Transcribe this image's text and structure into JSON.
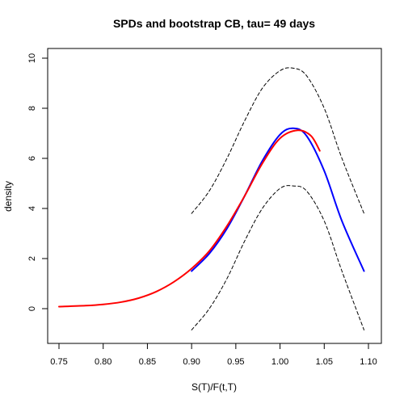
{
  "chart_data": {
    "type": "line",
    "title": "SPDs and bootstrap CB, tau= 49 days",
    "xlabel": "S(T)/F(t,T)",
    "ylabel": "density",
    "xlim": [
      0.75,
      1.1
    ],
    "ylim": [
      0,
      10
    ],
    "x_ticks": [
      "0.75",
      "0.80",
      "0.85",
      "0.90",
      "0.95",
      "1.00",
      "1.05",
      "1.10"
    ],
    "y_ticks": [
      "0",
      "2",
      "4",
      "6",
      "8",
      "10"
    ],
    "grid": false,
    "legend": "none",
    "series": [
      {
        "style": "dashed",
        "color": "#000000",
        "x": [
          0.9,
          0.92,
          0.94,
          0.96,
          0.98,
          1.0,
          1.015,
          1.03,
          1.05,
          1.07,
          1.095
        ],
        "y": [
          3.8,
          4.7,
          6.0,
          7.5,
          8.8,
          9.5,
          9.6,
          9.3,
          8.0,
          6.0,
          3.8
        ]
      },
      {
        "style": "dashed",
        "color": "#000000",
        "x": [
          0.9,
          0.92,
          0.94,
          0.96,
          0.98,
          1.0,
          1.015,
          1.03,
          1.05,
          1.07,
          1.095
        ],
        "y": [
          -0.85,
          0.0,
          1.2,
          2.7,
          4.0,
          4.8,
          4.9,
          4.7,
          3.5,
          1.5,
          -0.85
        ]
      },
      {
        "style": "solid",
        "color": "#0000ff",
        "x": [
          0.9,
          0.92,
          0.94,
          0.96,
          0.98,
          1.0,
          1.015,
          1.03,
          1.05,
          1.07,
          1.095
        ],
        "y": [
          1.5,
          2.2,
          3.2,
          4.5,
          5.9,
          6.95,
          7.2,
          6.9,
          5.5,
          3.5,
          1.5
        ]
      },
      {
        "style": "solid",
        "color": "#ff0000",
        "x": [
          0.75,
          0.78,
          0.8,
          0.82,
          0.84,
          0.86,
          0.88,
          0.9,
          0.92,
          0.94,
          0.96,
          0.98,
          1.0,
          1.02,
          1.035,
          1.045
        ],
        "y": [
          0.08,
          0.12,
          0.17,
          0.26,
          0.42,
          0.68,
          1.07,
          1.6,
          2.3,
          3.3,
          4.5,
          5.8,
          6.8,
          7.12,
          6.9,
          6.3
        ]
      }
    ]
  }
}
